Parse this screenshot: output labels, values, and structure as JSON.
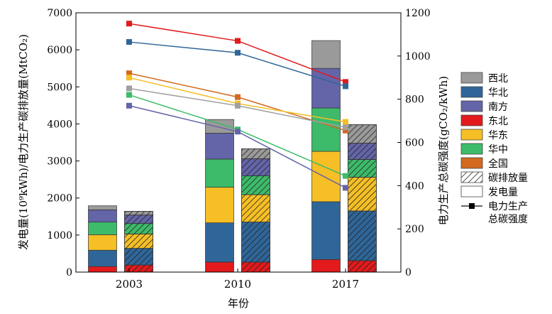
{
  "chart_data": {
    "type": "bar",
    "xlabel": "年份",
    "ylabel_left": "发电量(10⁹kWh)/电力生产碳排放量(MtCO₂)",
    "ylabel_right": "电力生产总碳强度(gCO₂/kWh)",
    "categories": [
      "2003",
      "2010",
      "2017"
    ],
    "ylim_left": [
      0,
      7000
    ],
    "yticks_left": [
      "0",
      "1000",
      "2000",
      "3000",
      "4000",
      "5000",
      "6000",
      "7000"
    ],
    "ylim_right": [
      0,
      1200
    ],
    "yticks_right": [
      "0",
      "200",
      "400",
      "600",
      "800",
      "1000",
      "1200"
    ],
    "grid": false,
    "legend_position": "right",
    "regions": [
      {
        "name": "东北",
        "color": "#e31a1c"
      },
      {
        "name": "华北",
        "color": "#2f6699"
      },
      {
        "name": "华东",
        "color": "#f5bf25"
      },
      {
        "name": "华中",
        "color": "#3dbb6a"
      },
      {
        "name": "南方",
        "color": "#6464a8"
      },
      {
        "name": "西北",
        "color": "#9a9a9a"
      }
    ],
    "bar_series": [
      {
        "name": "发电量",
        "pattern": "solid",
        "stacks": [
          [
            150,
            440,
            420,
            340,
            330,
            110
          ],
          [
            270,
            1060,
            960,
            760,
            700,
            370
          ],
          [
            340,
            1560,
            1360,
            1170,
            1070,
            750
          ]
        ]
      },
      {
        "name": "碳排放量",
        "pattern": "hatched",
        "stacks": [
          [
            190,
            450,
            390,
            280,
            230,
            100
          ],
          [
            270,
            1080,
            740,
            510,
            460,
            270
          ],
          [
            310,
            1340,
            910,
            480,
            440,
            500
          ]
        ]
      }
    ],
    "line_series": [
      {
        "name": "东北",
        "values": [
          1150,
          1070,
          880
        ]
      },
      {
        "name": "华北",
        "values": [
          1065,
          1015,
          860
        ]
      },
      {
        "name": "全国",
        "values": [
          920,
          810,
          655
        ]
      },
      {
        "name": "华东",
        "values": [
          900,
          780,
          695
        ]
      },
      {
        "name": "西北",
        "values": [
          850,
          770,
          670
        ]
      },
      {
        "name": "华中",
        "values": [
          820,
          660,
          445
        ]
      },
      {
        "name": "南方",
        "values": [
          770,
          650,
          390
        ]
      }
    ],
    "line_colors": {
      "东北": "#e31a1c",
      "华北": "#2f6699",
      "全国": "#d2691e",
      "华东": "#f5bf25",
      "西北": "#a0a0a0",
      "华中": "#3dbb6a",
      "南方": "#6464a8"
    },
    "legend": [
      {
        "label": "西北",
        "kind": "color",
        "color": "#9a9a9a"
      },
      {
        "label": "华北",
        "kind": "color",
        "color": "#2f6699"
      },
      {
        "label": "南方",
        "kind": "color",
        "color": "#6464a8"
      },
      {
        "label": "东北",
        "kind": "color",
        "color": "#e31a1c"
      },
      {
        "label": "华东",
        "kind": "color",
        "color": "#f5bf25"
      },
      {
        "label": "华中",
        "kind": "color",
        "color": "#3dbb6a"
      },
      {
        "label": "全国",
        "kind": "color",
        "color": "#d2691e"
      },
      {
        "label": "碳排放量",
        "kind": "hatch"
      },
      {
        "label": "发电量",
        "kind": "blank"
      },
      {
        "label": "电力生产",
        "label2": "总碳强度",
        "kind": "line"
      }
    ]
  }
}
